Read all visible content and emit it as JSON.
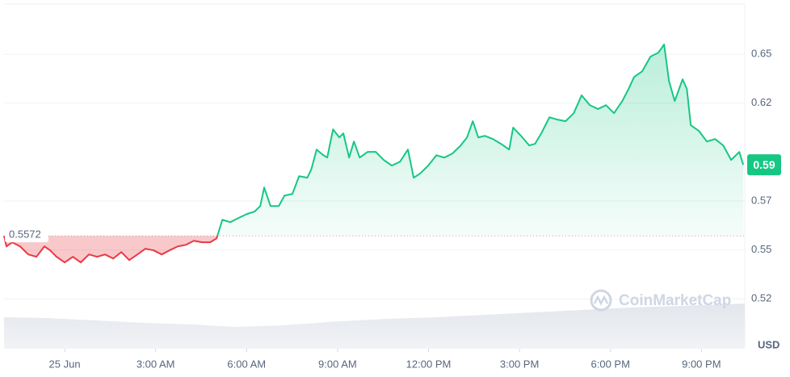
{
  "chart_data": {
    "type": "line",
    "color_up": "#16c784",
    "color_down": "#ea3943",
    "baseline": 0.5572,
    "current_price_label": "0.59",
    "y_unit": "USD",
    "watermark": "CoinMarketCap",
    "grid": true,
    "xlim": [
      -2.0,
      22.43
    ],
    "ylim": [
      0.5,
      0.675
    ],
    "xticks": [
      {
        "value": 0,
        "label": "25 Jun"
      },
      {
        "value": 3,
        "label": "3:00 AM"
      },
      {
        "value": 6,
        "label": "6:00 AM"
      },
      {
        "value": 9,
        "label": "9:00 AM"
      },
      {
        "value": 12,
        "label": "12:00 PM"
      },
      {
        "value": 15,
        "label": "3:00 PM"
      },
      {
        "value": 18,
        "label": "6:00 PM"
      },
      {
        "value": 21,
        "label": "9:00 PM"
      }
    ],
    "yticks": [
      {
        "value": 0.525,
        "label": "0.52"
      },
      0.55,
      {
        "value": 0.575,
        "label": "0.57"
      },
      {
        "value": 0.625,
        "label": "0.62"
      },
      0.65
    ],
    "x": [
      -2.0,
      -1.92,
      -1.73,
      -1.47,
      -1.2,
      -0.93,
      -0.67,
      -0.48,
      -0.27,
      0,
      0.27,
      0.53,
      0.8,
      1.07,
      1.33,
      1.6,
      1.87,
      2.13,
      2.4,
      2.66,
      2.93,
      3.2,
      3.46,
      3.73,
      4.0,
      4.26,
      4.53,
      4.8,
      5.01,
      5.2,
      5.46,
      5.73,
      6.0,
      6.26,
      6.45,
      6.58,
      6.79,
      7.06,
      7.25,
      7.51,
      7.73,
      8.0,
      8.13,
      8.31,
      8.53,
      8.66,
      8.85,
      9.06,
      9.19,
      9.38,
      9.54,
      9.73,
      9.99,
      10.26,
      10.52,
      10.79,
      11.06,
      11.32,
      11.51,
      11.72,
      11.99,
      12.26,
      12.52,
      12.79,
      13.06,
      13.27,
      13.46,
      13.64,
      13.86,
      14.12,
      14.39,
      14.66,
      14.79,
      15.05,
      15.32,
      15.51,
      15.72,
      15.99,
      16.25,
      16.52,
      16.79,
      17.05,
      17.32,
      17.59,
      17.85,
      18.12,
      18.39,
      18.6,
      18.78,
      19.05,
      19.32,
      19.58,
      19.77,
      19.93,
      20.12,
      20.38,
      20.52,
      20.65,
      20.92,
      21.18,
      21.45,
      21.72,
      21.98,
      22.25,
      22.38
    ],
    "values": [
      0.5572,
      0.5518,
      0.5539,
      0.5518,
      0.5477,
      0.5465,
      0.5518,
      0.5498,
      0.5465,
      0.5436,
      0.5465,
      0.5436,
      0.5477,
      0.5465,
      0.5477,
      0.5456,
      0.5489,
      0.5448,
      0.5477,
      0.5506,
      0.5498,
      0.5477,
      0.5498,
      0.5518,
      0.5526,
      0.5547,
      0.5539,
      0.5539,
      0.5559,
      0.5654,
      0.5642,
      0.5663,
      0.5683,
      0.5696,
      0.5724,
      0.5819,
      0.5724,
      0.5724,
      0.5778,
      0.5786,
      0.5877,
      0.5869,
      0.591,
      0.6013,
      0.5984,
      0.5972,
      0.6116,
      0.6075,
      0.6096,
      0.5972,
      0.6054,
      0.5972,
      0.6001,
      0.6001,
      0.596,
      0.5931,
      0.5951,
      0.6013,
      0.5869,
      0.589,
      0.5931,
      0.5984,
      0.5972,
      0.5993,
      0.6034,
      0.6075,
      0.6158,
      0.6075,
      0.6083,
      0.6067,
      0.6042,
      0.6013,
      0.6125,
      0.6083,
      0.6034,
      0.6042,
      0.6096,
      0.6178,
      0.6166,
      0.6158,
      0.6199,
      0.629,
      0.624,
      0.622,
      0.624,
      0.6199,
      0.6261,
      0.6323,
      0.6384,
      0.6413,
      0.6488,
      0.6508,
      0.655,
      0.6364,
      0.6261,
      0.6372,
      0.6323,
      0.6137,
      0.6108,
      0.6054,
      0.6067,
      0.6034,
      0.596,
      0.6001,
      0.5935
    ]
  }
}
